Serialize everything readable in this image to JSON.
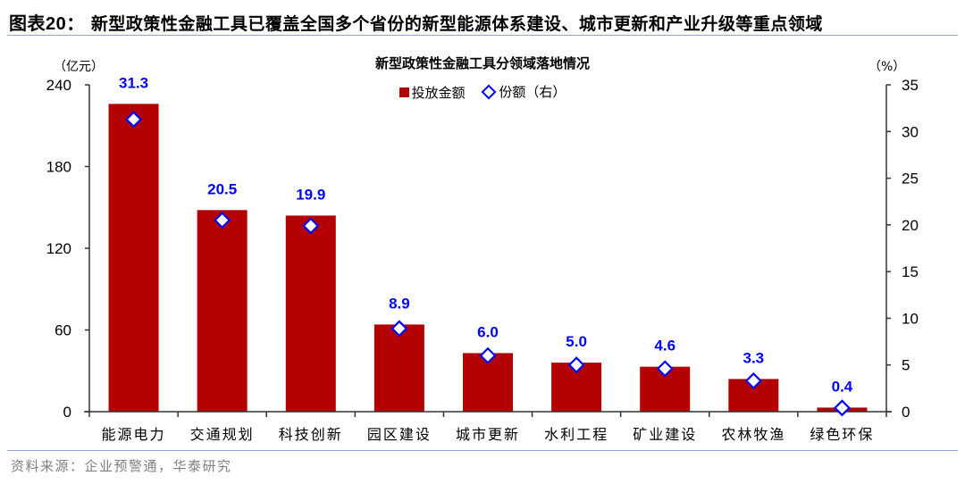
{
  "figure": {
    "label": "图表20：",
    "title": "新型政策性金融工具已覆盖全国多个省份的新型能源体系建设、城市更新和产业升级等重点领域",
    "source": "资料来源：企业预警通，华泰研究"
  },
  "colors": {
    "bar": "#b30000",
    "marker": "#0000ff",
    "value_label": "#0000ff",
    "rule": "#8ea9d0",
    "source_text": "#7f7f7f"
  },
  "chart_data": {
    "type": "bar",
    "title": "新型政策性金融工具分领域落地情况",
    "xlabel": "",
    "ylabel": "（亿元）",
    "y2label": "（%）",
    "ylim": [
      0,
      240
    ],
    "y2lim": [
      0,
      35
    ],
    "yticks": [
      0,
      60,
      120,
      180,
      240
    ],
    "y2ticks": [
      0,
      5,
      10,
      15,
      20,
      25,
      30,
      35
    ],
    "grid": false,
    "legend_position": "top-center",
    "categories": [
      "能源电力",
      "交通规划",
      "科技创新",
      "园区建设",
      "城市更新",
      "水利工程",
      "矿业建设",
      "农林牧渔",
      "绿色环保"
    ],
    "series": [
      {
        "name": "投放金额",
        "type": "bar",
        "axis": "left",
        "color": "#b30000",
        "values": [
          226,
          148,
          144,
          64,
          43,
          36,
          33,
          24,
          3
        ]
      },
      {
        "name": "份额（右）",
        "type": "scatter",
        "marker": "diamond-open",
        "axis": "right",
        "color": "#0000ff",
        "values": [
          31.3,
          20.5,
          19.9,
          8.9,
          6.0,
          5.0,
          4.6,
          3.3,
          0.4
        ],
        "labels": [
          "31.3",
          "20.5",
          "19.9",
          "8.9",
          "6.0",
          "5.0",
          "4.6",
          "3.3",
          "0.4"
        ]
      }
    ]
  }
}
